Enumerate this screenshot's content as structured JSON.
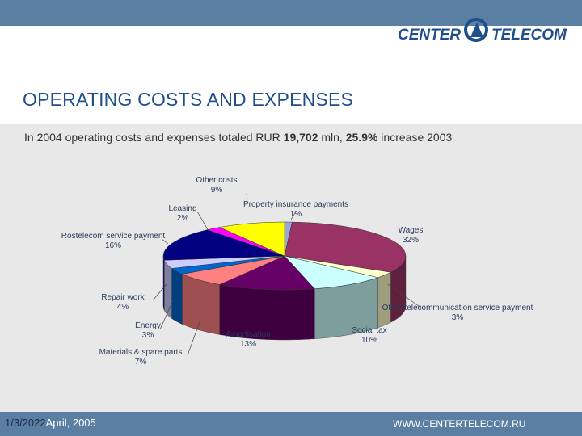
{
  "header": {
    "logo_left": "CENTER",
    "logo_right": "TELECOM",
    "title": "OPERATING COSTS AND EXPENSES"
  },
  "subtitle": {
    "prefix": "In 2004 operating costs and expenses totaled RUR ",
    "amount": "19,702",
    "middle": " mln, ",
    "percent": "25.9%",
    "suffix": " increase 2003"
  },
  "footer": {
    "date_part1": "1/3/2022",
    "date_part2": "April, 2005",
    "url": "WWW.CENTERTELECOM.RU"
  },
  "colors": {
    "bars": "#5b7fa3",
    "title": "#1f4e8c",
    "content_bg": "#e8e8e8"
  },
  "chart_data": {
    "type": "pie",
    "title": "",
    "slices": [
      {
        "label": "Property insurance payments",
        "value": 1,
        "display": "1%",
        "color": "#9aa6e0"
      },
      {
        "label": "Wages",
        "value": 32,
        "display": "32%",
        "color": "#993366"
      },
      {
        "label": "Other telecommunication service payment",
        "value": 3,
        "display": "3%",
        "color": "#ffffcc"
      },
      {
        "label": "Social tax",
        "value": 10,
        "display": "10%",
        "color": "#ccffff"
      },
      {
        "label": "Amortisation",
        "value": 13,
        "display": "13%",
        "color": "#660066"
      },
      {
        "label": "Materials & spare parts",
        "value": 7,
        "display": "7%",
        "color": "#ff8080"
      },
      {
        "label": "Energy",
        "value": 3,
        "display": "3%",
        "color": "#0066cc"
      },
      {
        "label": "Repair work",
        "value": 4,
        "display": "4%",
        "color": "#ccccff"
      },
      {
        "label": "Rostelecom service payment",
        "value": 16,
        "display": "16%",
        "color": "#000080"
      },
      {
        "label": "Leasing",
        "value": 2,
        "display": "2%",
        "color": "#ff00ff"
      },
      {
        "label": "Other costs",
        "value": 9,
        "display": "9%",
        "color": "#ffff00"
      }
    ]
  }
}
